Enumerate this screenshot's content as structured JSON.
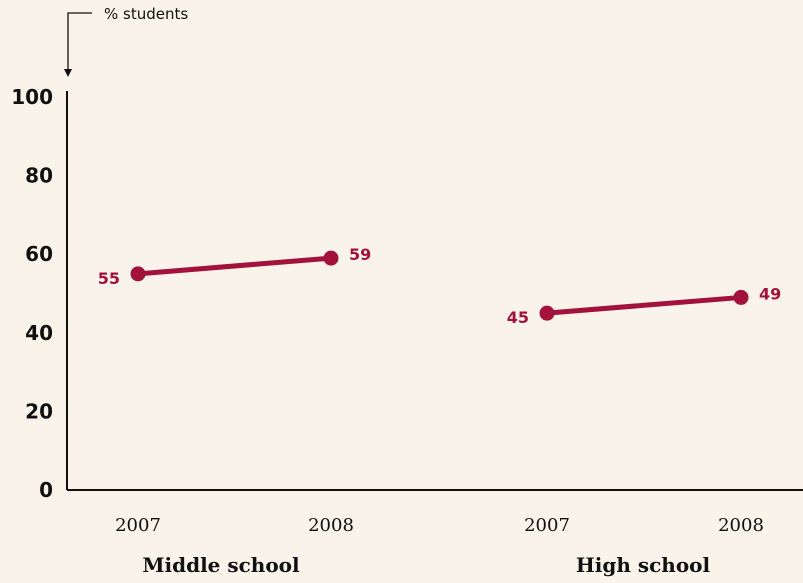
{
  "chart_data": {
    "type": "line",
    "unit_label": "% students",
    "ylim": [
      0,
      100
    ],
    "yticks": [
      "0",
      "20",
      "40",
      "60",
      "80",
      "100"
    ],
    "groups": [
      {
        "name": "Middle school",
        "x": [
          "2007",
          "2008"
        ],
        "values": [
          55,
          59
        ],
        "labels": [
          "55",
          "59"
        ]
      },
      {
        "name": "High school",
        "x": [
          "2007",
          "2008"
        ],
        "values": [
          45,
          49
        ],
        "labels": [
          "45",
          "49"
        ]
      }
    ],
    "grid": false,
    "colors": {
      "series": "#a3123a",
      "axis": "#111111",
      "background": "#f9f3ea"
    }
  }
}
